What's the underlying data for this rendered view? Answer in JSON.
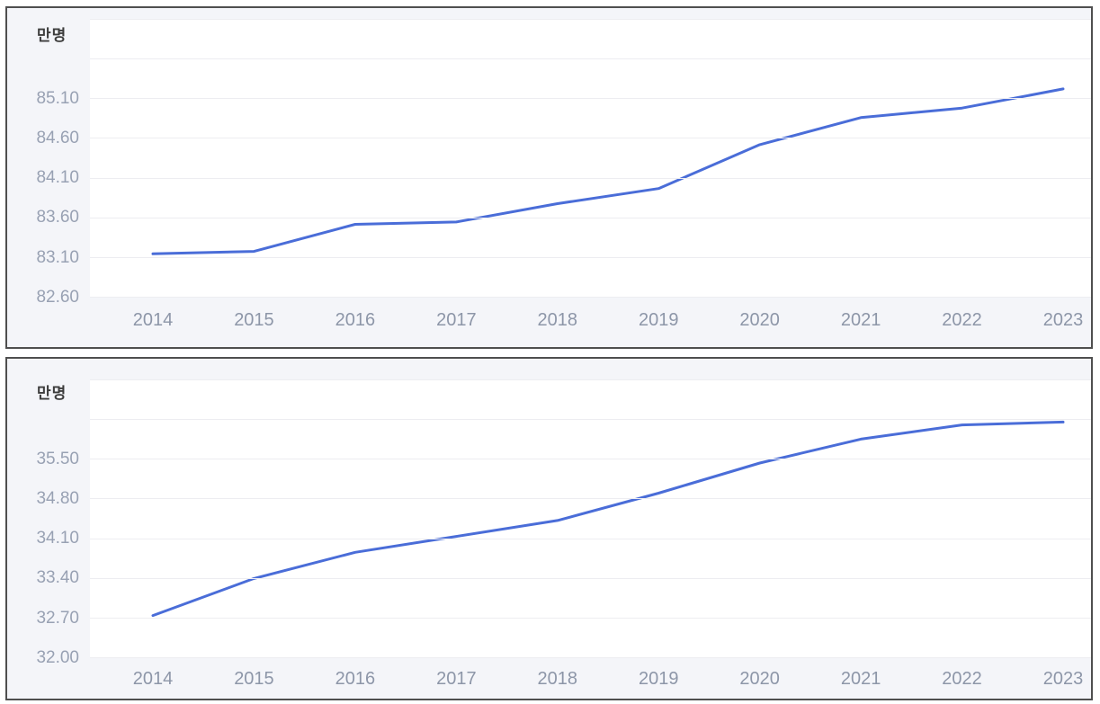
{
  "colors": {
    "page_bg": "#ffffff",
    "card_bg": "#f4f5f9",
    "card_border": "#4f4f4f",
    "plot_bg": "#ffffff",
    "gridline": "#ededf1",
    "tick_label": "#98a1b3",
    "unit_label": "#3d3d3d",
    "line": "#4a6dd8"
  },
  "chart_data": [
    {
      "type": "line",
      "unit": "만명",
      "ylabel": "만명",
      "xlabel": "",
      "categories": [
        "2014",
        "2015",
        "2016",
        "2017",
        "2018",
        "2019",
        "2020",
        "2021",
        "2022",
        "2023"
      ],
      "values": [
        83.15,
        83.18,
        83.52,
        83.55,
        83.78,
        83.97,
        84.52,
        84.86,
        84.98,
        85.22
      ],
      "ylim": [
        82.6,
        86.1
      ],
      "ytick_step": 0.5,
      "yticks_labeled": [
        "85.10",
        "84.60",
        "84.10",
        "83.60",
        "83.10",
        "82.60"
      ],
      "grid": "on",
      "legend": "none",
      "line_color": "#4a6dd8"
    },
    {
      "type": "line",
      "unit": "만명",
      "ylabel": "만명",
      "xlabel": "",
      "categories": [
        "2014",
        "2015",
        "2016",
        "2017",
        "2018",
        "2019",
        "2020",
        "2021",
        "2022",
        "2023"
      ],
      "values": [
        32.75,
        33.4,
        33.86,
        34.14,
        34.42,
        34.9,
        35.43,
        35.85,
        36.1,
        36.15
      ],
      "ylim": [
        32.0,
        36.9
      ],
      "ytick_step": 0.7,
      "yticks_labeled": [
        "35.50",
        "34.80",
        "34.10",
        "33.40",
        "32.70",
        "32.00"
      ],
      "grid": "on",
      "legend": "none",
      "line_color": "#4a6dd8"
    }
  ]
}
